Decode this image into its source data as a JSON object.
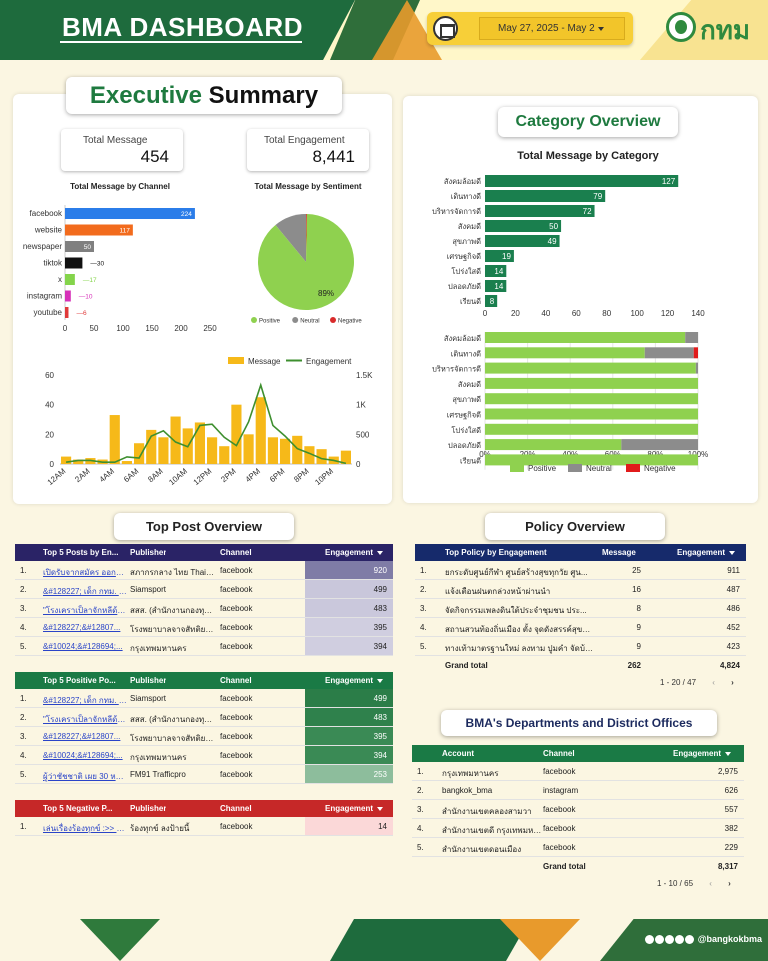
{
  "header": {
    "title": "BMA DASHBOARD",
    "date_range": "May 27, 2025 - May 2",
    "logo_text": "กทม",
    "calendar_icon": "calendar-icon"
  },
  "exec": {
    "title_a": "Executive",
    "title_b": "Summary",
    "kpi_message_label": "Total Message",
    "kpi_message_value": "454",
    "kpi_engagement_label": "Total Engagement",
    "kpi_engagement_value": "8,441"
  },
  "channel_chart_title": "Total Message by Channel",
  "sentiment_chart_title": "Total Message by Sentiment",
  "category": {
    "panel_title": "Category Overview",
    "chart_title": "Total Message by Category"
  },
  "sections": {
    "top_post": "Top Post Overview",
    "policy": "Policy Overview",
    "departments": "BMA's Departments and District Offices"
  },
  "chart_data": [
    {
      "type": "bar",
      "orientation": "horizontal",
      "categories": [
        "facebook",
        "website",
        "newspaper",
        "tiktok",
        "x",
        "instagram",
        "youtube"
      ],
      "values": [
        224,
        117,
        50,
        30,
        17,
        10,
        6
      ],
      "colors": [
        "#2b7de9",
        "#f26b1d",
        "#808080",
        "#111111",
        "#84d44b",
        "#d631b8",
        "#e03a3a"
      ],
      "xlim": [
        0,
        250
      ],
      "xticks": [
        0,
        50,
        100,
        150,
        200,
        250
      ]
    },
    {
      "type": "pie",
      "labels": [
        "Positive",
        "Neutral",
        "Negative"
      ],
      "values": [
        89,
        11,
        0.3
      ],
      "colors": [
        "#8fd14f",
        "#8c8c8c",
        "#d92b2b"
      ],
      "slice_label": "89%"
    },
    {
      "type": "bar+line",
      "x": [
        "12AM",
        "1AM",
        "2AM",
        "3AM",
        "4AM",
        "5AM",
        "6AM",
        "7AM",
        "8AM",
        "9AM",
        "10AM",
        "11AM",
        "12PM",
        "1PM",
        "2PM",
        "3PM",
        "4PM",
        "5PM",
        "6PM",
        "7PM",
        "8PM",
        "9PM",
        "10PM",
        "11PM"
      ],
      "xticks": [
        "12AM",
        "2AM",
        "4AM",
        "6AM",
        "8AM",
        "10AM",
        "12PM",
        "2PM",
        "4PM",
        "6PM",
        "8PM",
        "10PM"
      ],
      "series": [
        {
          "name": "Message",
          "kind": "bar",
          "color": "#f6b919",
          "values": [
            5,
            3,
            4,
            3,
            33,
            2,
            14,
            23,
            18,
            32,
            24,
            28,
            18,
            12,
            40,
            20,
            45,
            18,
            17,
            19,
            12,
            10,
            5,
            9
          ]
        },
        {
          "name": "Engagement",
          "kind": "line",
          "color": "#3e8f2f",
          "values": [
            30,
            60,
            60,
            30,
            30,
            120,
            100,
            470,
            560,
            370,
            290,
            650,
            670,
            450,
            310,
            710,
            1330,
            650,
            470,
            260,
            180,
            90,
            60,
            10
          ]
        }
      ],
      "ylim_left": [
        0,
        60
      ],
      "yticks_left": [
        0,
        20,
        40,
        60
      ],
      "ylim_right": [
        0,
        1500
      ],
      "yticks_right": [
        "0",
        "500",
        "1K",
        "1.5K"
      ]
    },
    {
      "type": "bar",
      "orientation": "horizontal",
      "categories": [
        "สังคมล้อมดี",
        "เดินทางดี",
        "บริหารจัดการดี",
        "สังคมดี",
        "สุขภาพดี",
        "เศรษฐกิจดี",
        "โปร่งใสดี",
        "ปลอดภัยดี",
        "เรียนดี"
      ],
      "values": [
        127,
        79,
        72,
        50,
        49,
        19,
        14,
        14,
        8
      ],
      "color": "#1a7f4e",
      "xlim": [
        0,
        140
      ],
      "xticks": [
        0,
        20,
        40,
        60,
        80,
        100,
        120,
        140
      ]
    },
    {
      "type": "bar",
      "orientation": "horizontal",
      "stacked": "percent",
      "categories": [
        "สังคมล้อมดี",
        "เดินทางดี",
        "บริหารจัดการดี",
        "สังคมดี",
        "สุขภาพดี",
        "เศรษฐกิจดี",
        "โปร่งใสดี",
        "ปลอดภัยดี",
        "เรียนดี"
      ],
      "series": [
        {
          "name": "Positive",
          "color": "#8fd14f",
          "values": [
            94,
            75,
            99,
            100,
            100,
            100,
            100,
            64,
            100
          ]
        },
        {
          "name": "Neutral",
          "color": "#8c8c8c",
          "values": [
            6,
            23,
            1,
            0,
            0,
            0,
            0,
            36,
            0
          ]
        },
        {
          "name": "Negative",
          "color": "#e11b1b",
          "values": [
            0,
            2,
            0,
            0,
            0,
            0,
            0,
            0,
            0
          ]
        }
      ],
      "xticks": [
        "0%",
        "20%",
        "40%",
        "60%",
        "80%",
        "100%"
      ]
    }
  ],
  "tables": {
    "top_posts": {
      "headers": [
        "Top 5 Posts by En...",
        "Publisher",
        "Channel",
        "Engagement"
      ],
      "rows": [
        [
          "1.",
          "เปิดรับจากสมัคร ออกหนู...",
          "สภากรกลาง ไทย Thai Red...",
          "facebook",
          "920"
        ],
        [
          "2.",
          "&#128227; เด็ก กทม. โ...",
          "Siamsport",
          "facebook",
          "499"
        ],
        [
          "3.",
          "\"โรงเคราเป็ลาจักหลีด้วามา...",
          "สสส. (สำนักงานกองทุนสนั...",
          "facebook",
          "483"
        ],
        [
          "4.",
          "&#128227;&#12807...",
          "โรงพยาบาลจาจสัทติยมด ล่...",
          "facebook",
          "395"
        ],
        [
          "5.",
          "&#10024;&#128694;...",
          "กรุงเทพมหานคร",
          "facebook",
          "394"
        ]
      ]
    },
    "positive_posts": {
      "headers": [
        "Top 5 Positive Po...",
        "Publisher",
        "Channel",
        "Engagement"
      ],
      "rows": [
        [
          "1.",
          "&#128227; เด็ก กทม. โ...",
          "Siamsport",
          "facebook",
          "499"
        ],
        [
          "2.",
          "\"โรงเคราเป็ลาจักหลีด้วามา...",
          "สสส. (สำนักงานกองทุนสนั...",
          "facebook",
          "483"
        ],
        [
          "3.",
          "&#128227;&#12807...",
          "โรงพยาบาลจาจสัทติยมด ล่...",
          "facebook",
          "395"
        ],
        [
          "4.",
          "&#10024;&#128694;...",
          "กรุงเทพมหานคร",
          "facebook",
          "394"
        ],
        [
          "5.",
          "ผู้ว่าชัชชาติ เผย 30 หน่...",
          "FM91 Trafficpro",
          "facebook",
          "253"
        ]
      ]
    },
    "negative_posts": {
      "headers": [
        "Top 5 Negative P...",
        "Publisher",
        "Channel",
        "Engagement"
      ],
      "rows": [
        [
          "1.",
          "เล่นเรื่องร้องทุกข์ :>> ร้องเรีย...",
          "ร้องทุกข์ ลงป้ายนี้",
          "facebook",
          "14"
        ]
      ]
    },
    "policy": {
      "headers": [
        "Top Policy by Engagement",
        "Message",
        "Engagement"
      ],
      "rows": [
        [
          "1.",
          "ยกระดับศูนย์กีฬา ศูนย์สร้างสุขทุกวัย ศูน...",
          "25",
          "911"
        ],
        [
          "2.",
          "แจ้งเตือนฝนตกล่วงหน้าผ่านนำ",
          "16",
          "487"
        ],
        [
          "3.",
          "จัดกิจกรรมเพลงดินใต้ประจำชุมชน ประ...",
          "8",
          "486"
        ],
        [
          "4.",
          "สถานสวนท้องถิ่นเมือง ตั้ง จุดดังสรรค์สุขภาพ...",
          "9",
          "452"
        ],
        [
          "5.",
          "ทางเท้ามาตรฐานใหม่ ลงทาม ปูมคำ จัดบ้าง...",
          "9",
          "423"
        ]
      ],
      "total_label": "Grand total",
      "total_message": "262",
      "total_engagement": "4,824",
      "pager": "1 - 20 / 47"
    },
    "departments": {
      "headers": [
        "Account",
        "Channel",
        "Engagement"
      ],
      "rows": [
        [
          "1.",
          "กรุงเทพมหานคร",
          "facebook",
          "2,975"
        ],
        [
          "2.",
          "bangkok_bma",
          "instagram",
          "626"
        ],
        [
          "3.",
          "สำนักงานเขตคลองสามวา",
          "facebook",
          "557"
        ],
        [
          "4.",
          "สำนักงานเขตดี กรุงเทพมหานคร",
          "facebook",
          "382"
        ],
        [
          "5.",
          "สำนักงานเขตดอนเมือง",
          "facebook",
          "229"
        ]
      ],
      "total_label": "Grand total",
      "total_engagement": "8,317",
      "pager": "1 - 10 / 65"
    }
  },
  "footer": {
    "handle": "@bangkokbma"
  }
}
